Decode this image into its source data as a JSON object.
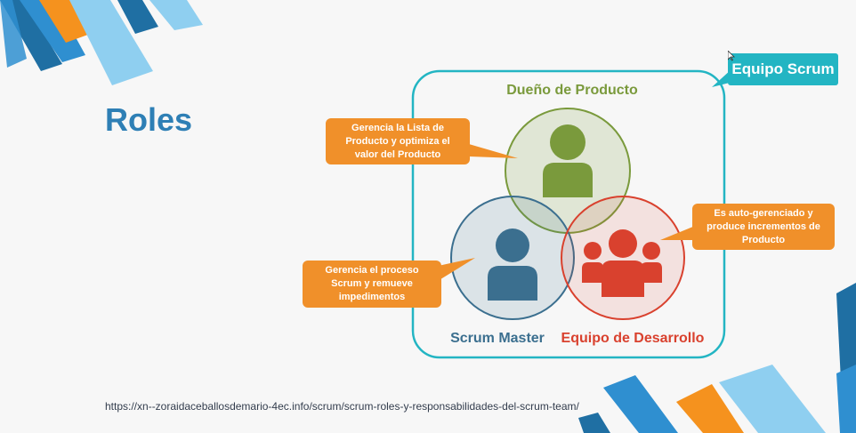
{
  "slide": {
    "title": "Roles",
    "source_url": "https://xn--zoraidaceballosdemario-4ec.info/scrum/scrum-roles-y-responsabilidades-del-scrum-team/"
  },
  "team": {
    "label": "Equipo Scrum"
  },
  "roles": {
    "product_owner": {
      "label": "Dueño de Producto",
      "callout": "Gerencia la Lista de Producto y optimiza el valor del Producto",
      "color": "#7a9a3c"
    },
    "scrum_master": {
      "label": "Scrum Master",
      "callout": "Gerencia el proceso Scrum y remueve impedimentos",
      "color": "#3b6f8f"
    },
    "dev_team": {
      "label": "Equipo de Desarrollo",
      "callout": "Es auto-gerenciado y produce incrementos de Producto",
      "color": "#d9412e"
    }
  },
  "colors": {
    "accent_teal": "#23b5c3",
    "callout_orange": "#f0902a",
    "title_blue": "#2e7fb5"
  },
  "icons": [
    "person-icon",
    "person-icon",
    "group-icon",
    "cursor-icon"
  ]
}
